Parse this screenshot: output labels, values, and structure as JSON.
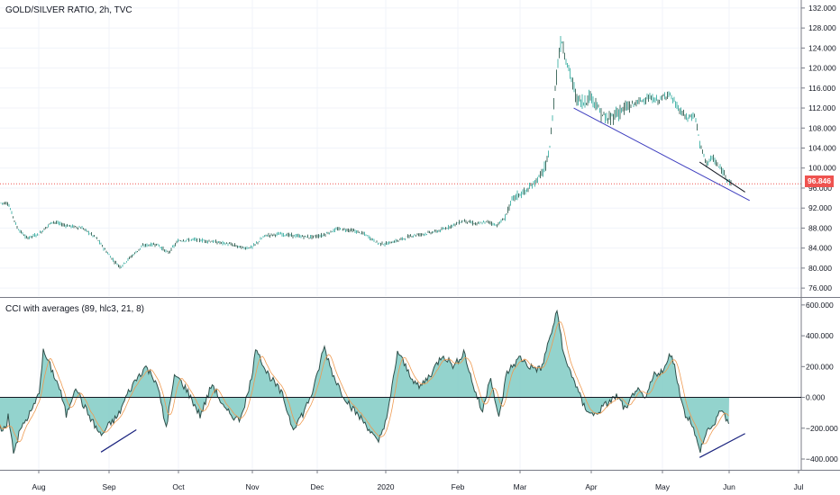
{
  "chart_data": [
    {
      "type": "candlestick",
      "title": "GOLD/SILVER RATIO, 2h, TVC",
      "y_ticks": [
        "76.000",
        "80.000",
        "84.000",
        "88.000",
        "92.000",
        "96.000",
        "100.000",
        "104.000",
        "108.000",
        "112.000",
        "116.000",
        "120.000",
        "124.000",
        "128.000",
        "132.000"
      ],
      "ylim": [
        74.4,
        133.6
      ],
      "x_ticks": [
        "Aug",
        "Sep",
        "Oct",
        "Nov",
        "Dec",
        "2020",
        "Feb",
        "Mar",
        "Apr",
        "May",
        "Jun",
        "Jul"
      ],
      "last_price": "96.846",
      "close_series": [
        {
          "x": "Jul 15",
          "y": 93.0
        },
        {
          "x": "Jul 20",
          "y": 88.0
        },
        {
          "x": "Jul 25",
          "y": 86.0
        },
        {
          "x": "Aug 1",
          "y": 86.8
        },
        {
          "x": "Aug 7",
          "y": 89.3
        },
        {
          "x": "Aug 12",
          "y": 88.6
        },
        {
          "x": "Aug 20",
          "y": 88.0
        },
        {
          "x": "Aug 26",
          "y": 86.0
        },
        {
          "x": "Aug 30",
          "y": 83.5
        },
        {
          "x": "Sep 3",
          "y": 81.5
        },
        {
          "x": "Sep 6",
          "y": 80.2
        },
        {
          "x": "Sep 10",
          "y": 82.0
        },
        {
          "x": "Sep 16",
          "y": 84.5
        },
        {
          "x": "Sep 22",
          "y": 84.8
        },
        {
          "x": "Sep 27",
          "y": 83.0
        },
        {
          "x": "Oct 1",
          "y": 85.5
        },
        {
          "x": "Oct 8",
          "y": 85.7
        },
        {
          "x": "Oct 15",
          "y": 85.3
        },
        {
          "x": "Oct 22",
          "y": 84.8
        },
        {
          "x": "Oct 28",
          "y": 84.0
        },
        {
          "x": "Nov 1",
          "y": 84.2
        },
        {
          "x": "Nov 7",
          "y": 86.5
        },
        {
          "x": "Nov 14",
          "y": 86.8
        },
        {
          "x": "Nov 22",
          "y": 86.4
        },
        {
          "x": "Nov 28",
          "y": 86.2
        },
        {
          "x": "Dec 3",
          "y": 86.5
        },
        {
          "x": "Dec 10",
          "y": 87.8
        },
        {
          "x": "Dec 16",
          "y": 87.6
        },
        {
          "x": "Dec 22",
          "y": 86.8
        },
        {
          "x": "Dec 28",
          "y": 85.0
        },
        {
          "x": "Jan 1",
          "y": 84.8
        },
        {
          "x": "Jan 6",
          "y": 85.5
        },
        {
          "x": "Jan 12",
          "y": 86.5
        },
        {
          "x": "Jan 18",
          "y": 86.9
        },
        {
          "x": "Jan 24",
          "y": 87.5
        },
        {
          "x": "Jan 30",
          "y": 88.7
        },
        {
          "x": "Feb 4",
          "y": 89.5
        },
        {
          "x": "Feb 10",
          "y": 88.8
        },
        {
          "x": "Feb 16",
          "y": 89.3
        },
        {
          "x": "Feb 20",
          "y": 88.5
        },
        {
          "x": "Feb 24",
          "y": 90.0
        },
        {
          "x": "Feb 28",
          "y": 94.0
        },
        {
          "x": "Mar 4",
          "y": 95.5
        },
        {
          "x": "Mar 8",
          "y": 97.5
        },
        {
          "x": "Mar 12",
          "y": 100.0
        },
        {
          "x": "Mar 14",
          "y": 105.0
        },
        {
          "x": "Mar 16",
          "y": 116.0
        },
        {
          "x": "Mar 18",
          "y": 124.0
        },
        {
          "x": "Mar 19",
          "y": 125.5
        },
        {
          "x": "Mar 21",
          "y": 121.0
        },
        {
          "x": "Mar 23",
          "y": 118.0
        },
        {
          "x": "Mar 25",
          "y": 114.0
        },
        {
          "x": "Mar 28",
          "y": 113.0
        },
        {
          "x": "Apr 1",
          "y": 114.5
        },
        {
          "x": "Apr 5",
          "y": 111.0
        },
        {
          "x": "Apr 8",
          "y": 109.5
        },
        {
          "x": "Apr 12",
          "y": 111.0
        },
        {
          "x": "Apr 16",
          "y": 112.0
        },
        {
          "x": "Apr 20",
          "y": 113.0
        },
        {
          "x": "Apr 25",
          "y": 114.0
        },
        {
          "x": "Apr 30",
          "y": 113.5
        },
        {
          "x": "May 4",
          "y": 115.0
        },
        {
          "x": "May 8",
          "y": 112.0
        },
        {
          "x": "May 12",
          "y": 110.0
        },
        {
          "x": "May 16",
          "y": 110.5
        },
        {
          "x": "May 18",
          "y": 105.0
        },
        {
          "x": "May 21",
          "y": 101.0
        },
        {
          "x": "May 24",
          "y": 102.0
        },
        {
          "x": "May 27",
          "y": 100.0
        },
        {
          "x": "May 30",
          "y": 98.5
        },
        {
          "x": "Jun 2",
          "y": 96.8
        }
      ],
      "annotations": [
        "trendline from late Mar to early Jun (blue)",
        "short trendline late May to Jun (dark)",
        "horizontal line at last price (red dotted)"
      ]
    },
    {
      "type": "area",
      "title": "CCI with averages (89, hlc3, 21, 8)",
      "y_ticks": [
        "-400.000",
        "-200.000",
        "0.000",
        "200.000",
        "400.000",
        "600.000"
      ],
      "ylim": [
        -470,
        640
      ],
      "x_ticks": [
        "Aug",
        "Sep",
        "Oct",
        "Nov",
        "Dec",
        "2020",
        "Feb",
        "Mar",
        "Apr",
        "May",
        "Jun",
        "Jul"
      ],
      "cci_series": [
        {
          "x": "Jul 15",
          "y": -100
        },
        {
          "x": "Jul 18",
          "y": -350
        },
        {
          "x": "Jul 22",
          "y": -200
        },
        {
          "x": "Jul 28",
          "y": -80
        },
        {
          "x": "Aug 1",
          "y": 20
        },
        {
          "x": "Aug 3",
          "y": 300
        },
        {
          "x": "Aug 6",
          "y": 200
        },
        {
          "x": "Aug 10",
          "y": 60
        },
        {
          "x": "Aug 13",
          "y": -120
        },
        {
          "x": "Aug 17",
          "y": 80
        },
        {
          "x": "Aug 20",
          "y": -40
        },
        {
          "x": "Aug 24",
          "y": -150
        },
        {
          "x": "Aug 28",
          "y": -250
        },
        {
          "x": "Sep 1",
          "y": -180
        },
        {
          "x": "Sep 5",
          "y": -120
        },
        {
          "x": "Sep 9",
          "y": 20
        },
        {
          "x": "Sep 13",
          "y": 120
        },
        {
          "x": "Sep 17",
          "y": 200
        },
        {
          "x": "Sep 22",
          "y": 100
        },
        {
          "x": "Sep 26",
          "y": -200
        },
        {
          "x": "Sep 30",
          "y": 150
        },
        {
          "x": "Oct 4",
          "y": 60
        },
        {
          "x": "Oct 10",
          "y": -120
        },
        {
          "x": "Oct 15",
          "y": 90
        },
        {
          "x": "Oct 20",
          "y": -80
        },
        {
          "x": "Oct 26",
          "y": -150
        },
        {
          "x": "Oct 30",
          "y": 40
        },
        {
          "x": "Nov 3",
          "y": 330
        },
        {
          "x": "Nov 7",
          "y": 180
        },
        {
          "x": "Nov 11",
          "y": 100
        },
        {
          "x": "Nov 15",
          "y": 20
        },
        {
          "x": "Nov 20",
          "y": -200
        },
        {
          "x": "Nov 25",
          "y": -100
        },
        {
          "x": "Nov 30",
          "y": 60
        },
        {
          "x": "Dec 4",
          "y": 330
        },
        {
          "x": "Dec 8",
          "y": 150
        },
        {
          "x": "Dec 12",
          "y": 30
        },
        {
          "x": "Dec 17",
          "y": -80
        },
        {
          "x": "Dec 23",
          "y": -180
        },
        {
          "x": "Dec 28",
          "y": -300
        },
        {
          "x": "Jan 2",
          "y": -100
        },
        {
          "x": "Jan 6",
          "y": 300
        },
        {
          "x": "Jan 10",
          "y": 180
        },
        {
          "x": "Jan 15",
          "y": 60
        },
        {
          "x": "Jan 20",
          "y": 150
        },
        {
          "x": "Jan 25",
          "y": 280
        },
        {
          "x": "Jan 30",
          "y": 200
        },
        {
          "x": "Feb 4",
          "y": 300
        },
        {
          "x": "Feb 8",
          "y": 100
        },
        {
          "x": "Feb 13",
          "y": -100
        },
        {
          "x": "Feb 17",
          "y": 150
        },
        {
          "x": "Feb 21",
          "y": -150
        },
        {
          "x": "Feb 25",
          "y": 160
        },
        {
          "x": "Mar 1",
          "y": 260
        },
        {
          "x": "Mar 5",
          "y": 200
        },
        {
          "x": "Mar 10",
          "y": 180
        },
        {
          "x": "Mar 14",
          "y": 400
        },
        {
          "x": "Mar 17",
          "y": 560
        },
        {
          "x": "Mar 20",
          "y": 250
        },
        {
          "x": "Mar 24",
          "y": 120
        },
        {
          "x": "Mar 28",
          "y": -50
        },
        {
          "x": "Apr 2",
          "y": -120
        },
        {
          "x": "Apr 7",
          "y": -50
        },
        {
          "x": "Apr 12",
          "y": 10
        },
        {
          "x": "Apr 16",
          "y": -90
        },
        {
          "x": "Apr 20",
          "y": 60
        },
        {
          "x": "Apr 24",
          "y": -20
        },
        {
          "x": "Apr 28",
          "y": 150
        },
        {
          "x": "May 2",
          "y": 180
        },
        {
          "x": "May 5",
          "y": 300
        },
        {
          "x": "May 8",
          "y": 100
        },
        {
          "x": "May 11",
          "y": -100
        },
        {
          "x": "May 14",
          "y": -150
        },
        {
          "x": "May 18",
          "y": -350
        },
        {
          "x": "May 22",
          "y": -200
        },
        {
          "x": "May 25",
          "y": -180
        },
        {
          "x": "May 28",
          "y": -60
        },
        {
          "x": "Jun 1",
          "y": -200
        }
      ],
      "annotations": [
        "divergence line near Sep (dark blue)",
        "divergence line late May to Jun (dark blue)",
        "horizontal line at 0"
      ]
    }
  ]
}
